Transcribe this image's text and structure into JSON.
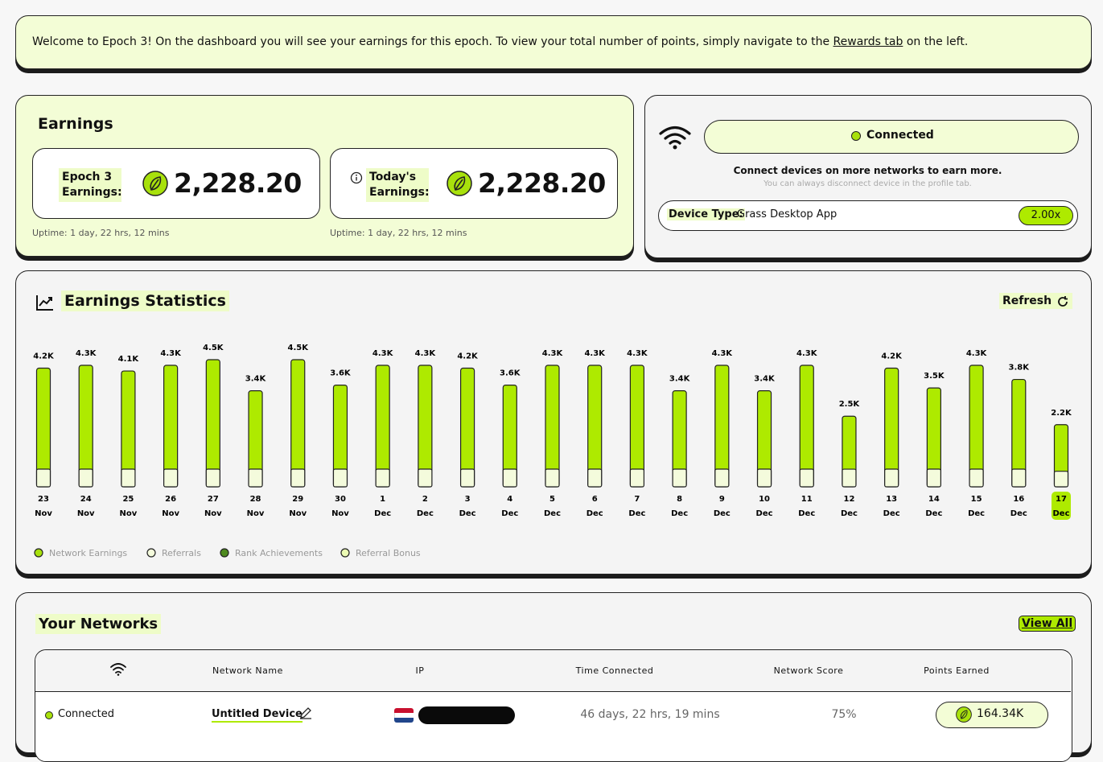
{
  "banner": {
    "text": "Welcome to Epoch 3! On the dashboard you will see your earnings for this epoch. To view your total number of points, simply navigate to the",
    "link": "Rewards tab",
    "tail": "on the left."
  },
  "earnings": {
    "title": "Earnings",
    "epoch": {
      "label": "Epoch 3 Earnings:",
      "value": "2,228.20",
      "uptime": "Uptime: 1 day, 22 hrs, 12 mins"
    },
    "today": {
      "label": "Today's Earnings:",
      "value": "2,228.20",
      "uptime": "Uptime: 1 day, 22 hrs, 12 mins"
    }
  },
  "connection": {
    "status": "Connected",
    "message": "Connect devices on more networks to earn more.",
    "note": "You can always disconnect device in the profile tab.",
    "device_label": "Device Type:",
    "device": "Grass Desktop App",
    "multiplier": "2.00x"
  },
  "stats": {
    "title": "Earnings Statistics",
    "refresh": "Refresh"
  },
  "chart_data": {
    "type": "bar",
    "categories": [
      [
        "23",
        "Nov"
      ],
      [
        "24",
        "Nov"
      ],
      [
        "25",
        "Nov"
      ],
      [
        "26",
        "Nov"
      ],
      [
        "27",
        "Nov"
      ],
      [
        "28",
        "Nov"
      ],
      [
        "29",
        "Nov"
      ],
      [
        "30",
        "Nov"
      ],
      [
        "1",
        "Dec"
      ],
      [
        "2",
        "Dec"
      ],
      [
        "3",
        "Dec"
      ],
      [
        "4",
        "Dec"
      ],
      [
        "5",
        "Dec"
      ],
      [
        "6",
        "Dec"
      ],
      [
        "7",
        "Dec"
      ],
      [
        "8",
        "Dec"
      ],
      [
        "9",
        "Dec"
      ],
      [
        "10",
        "Dec"
      ],
      [
        "11",
        "Dec"
      ],
      [
        "12",
        "Dec"
      ],
      [
        "13",
        "Dec"
      ],
      [
        "14",
        "Dec"
      ],
      [
        "15",
        "Dec"
      ],
      [
        "16",
        "Dec"
      ],
      [
        "17",
        "Dec"
      ]
    ],
    "values": [
      4200,
      4300,
      4100,
      4300,
      4500,
      3400,
      4500,
      3600,
      4300,
      4300,
      4200,
      3600,
      4300,
      4300,
      4300,
      3400,
      4300,
      3400,
      4300,
      2500,
      4200,
      3500,
      4300,
      3800,
      2200
    ],
    "value_labels": [
      "4.2K",
      "4.3K",
      "4.1K",
      "4.3K",
      "4.5K",
      "3.4K",
      "4.5K",
      "3.6K",
      "4.3K",
      "4.3K",
      "4.2K",
      "3.6K",
      "4.3K",
      "4.3K",
      "4.3K",
      "3.4K",
      "4.3K",
      "3.4K",
      "4.3K",
      "2.5K",
      "4.2K",
      "3.5K",
      "4.3K",
      "3.8K",
      "2.2K"
    ],
    "color": "#aeea00",
    "legend": [
      {
        "name": "Network Earnings",
        "color": "#a8e10c"
      },
      {
        "name": "Referrals",
        "color": "#f4fbdc"
      },
      {
        "name": "Rank Achievements",
        "color": "#4e8a1e"
      },
      {
        "name": "Referral Bonus",
        "color": "#ecfcb4"
      }
    ]
  },
  "networks": {
    "title": "Your Networks",
    "view_all": "View All",
    "columns": [
      "Network Name",
      "IP",
      "Time Connected",
      "Network Score",
      "Points Earned"
    ],
    "rows": [
      {
        "status": "Connected",
        "name": "Untitled Device",
        "time": "46 days, 22 hrs, 19 mins",
        "score": "75%",
        "points": "164.34K"
      }
    ]
  }
}
